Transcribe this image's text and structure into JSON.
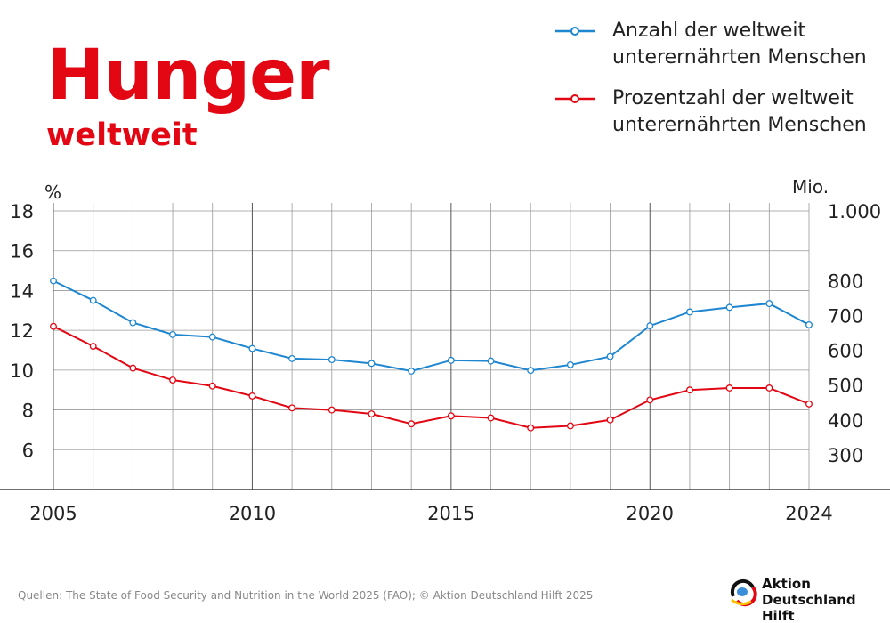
{
  "header": {
    "title": "Hunger",
    "subtitle": "weltweit"
  },
  "legend": [
    {
      "label": "Anzahl der weltweit unterernährten Menschen",
      "color": "#1f86d0"
    },
    {
      "label": "Prozentzahl der weltweit unterernährten Menschen",
      "color": "#e30613"
    }
  ],
  "footer": {
    "source": "Quellen: The State of Food Security and Nutrition in the World 2025 (FAO); © Aktion Deutschland Hilft 2025",
    "logo_line1": "Aktion",
    "logo_line2": "Deutschland Hilft"
  },
  "chart_data": {
    "type": "line",
    "title": "Hunger weltweit",
    "x": [
      2005,
      2006,
      2007,
      2008,
      2009,
      2010,
      2011,
      2012,
      2013,
      2014,
      2015,
      2016,
      2017,
      2018,
      2019,
      2020,
      2021,
      2022,
      2023,
      2024
    ],
    "x_tick_labels": [
      "2005",
      "2010",
      "2015",
      "2020",
      "2024"
    ],
    "y_left": {
      "label": "%",
      "range": [
        4,
        18
      ],
      "ticks": [
        "6",
        "8",
        "10",
        "12",
        "14",
        "16",
        "18"
      ]
    },
    "y_right": {
      "label": "Mio.",
      "range": [
        200,
        1000
      ],
      "ticks": [
        "300",
        "400",
        "500",
        "600",
        "700",
        "800",
        "1.000"
      ]
    },
    "grid": true,
    "legend_position": "top-right",
    "series": [
      {
        "name": "Anzahl der weltweit unterernährten Menschen",
        "axis": "right",
        "color": "#1f86d0",
        "values": [
          799,
          743,
          679,
          645,
          638,
          605,
          576,
          573,
          562,
          540,
          571,
          569,
          542,
          558,
          582,
          670,
          710,
          723,
          734,
          673
        ]
      },
      {
        "name": "Prozentzahl der weltweit unterernährten Menschen",
        "axis": "left",
        "color": "#e30613",
        "values": [
          12.2,
          11.2,
          10.1,
          9.5,
          9.2,
          8.7,
          8.1,
          8.0,
          7.8,
          7.3,
          7.7,
          7.6,
          7.1,
          7.2,
          7.5,
          8.5,
          9.0,
          9.1,
          9.1,
          8.3
        ]
      }
    ]
  }
}
